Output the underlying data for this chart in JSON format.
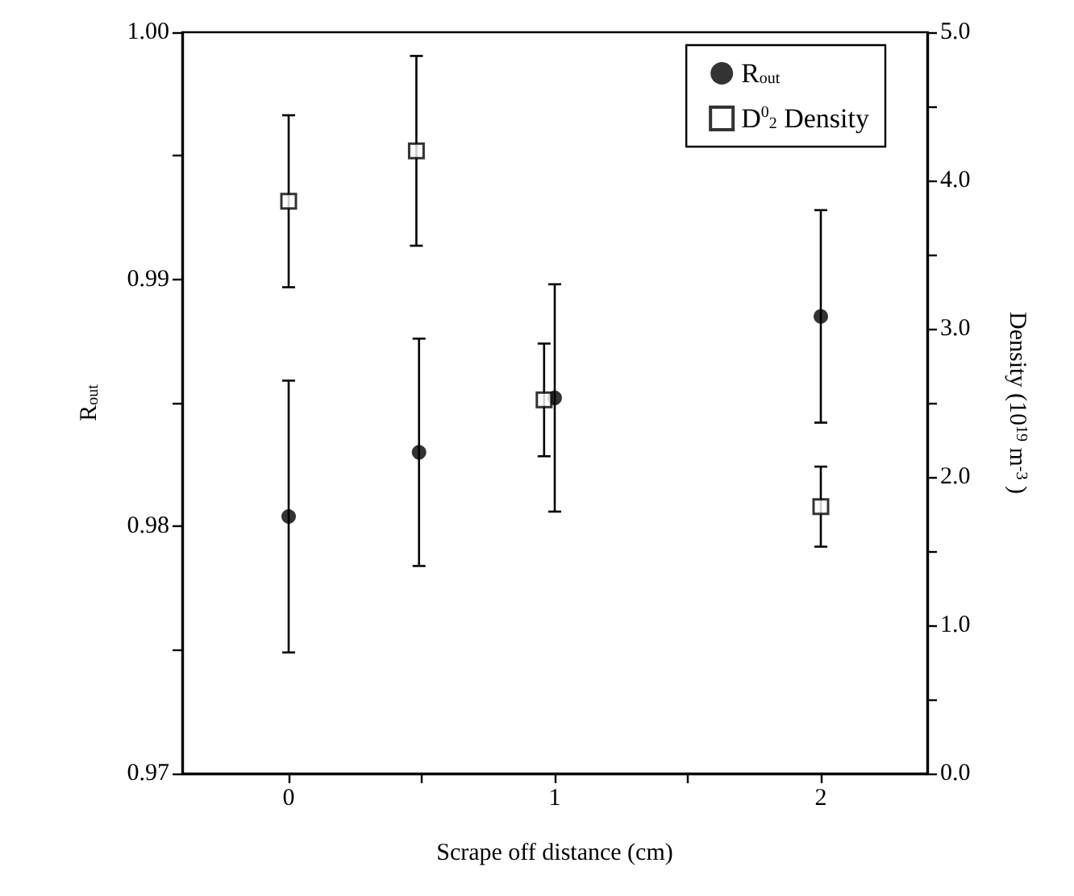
{
  "chart_data": {
    "type": "scatter",
    "xlabel": "Scrape off distance (cm)",
    "ylabel": "R$_{out}$",
    "y2label": "Density (10$^{19}$ m$^{-3}$ )",
    "xlim": [
      -0.4,
      2.4
    ],
    "xticks": [
      0,
      {
        "value": 0.5,
        "label": null
      },
      1,
      {
        "value": 1.5,
        "label": null
      },
      2
    ],
    "ylim": [
      0.97,
      1.0
    ],
    "yticks": [
      0.97,
      {
        "value": 0.975,
        "label": null
      },
      0.98,
      {
        "value": 0.985,
        "label": null
      },
      0.99,
      {
        "value": 0.995,
        "label": null
      },
      {
        "value": 1.0,
        "label": "1.00"
      }
    ],
    "y2lim": [
      0,
      5
    ],
    "y2ticks": [
      {
        "value": 0,
        "label": "0.0"
      },
      {
        "value": 0.5,
        "label": null
      },
      {
        "value": 1,
        "label": "1.0"
      },
      {
        "value": 1.5,
        "label": null
      },
      {
        "value": 2,
        "label": "2.0"
      },
      {
        "value": 2.5,
        "label": null
      },
      {
        "value": 3,
        "label": "3.0"
      },
      {
        "value": 3.5,
        "label": null
      },
      {
        "value": 4,
        "label": "4.0"
      },
      {
        "value": 4.5,
        "label": null
      },
      {
        "value": 5,
        "label": "5.0"
      }
    ],
    "legend": "top right",
    "series": [
      {
        "name": "R$_{out}$",
        "color": "#000000",
        "marker": "circle",
        "x": [
          0,
          0.49,
          1.0,
          2.0
        ],
        "values": [
          0.9804,
          0.983,
          0.9852,
          0.9885
        ],
        "errors": [
          0.0055,
          0.0046,
          0.0046,
          0.0043
        ]
      },
      {
        "name": "D$^{0}$$_{2}$ Density",
        "color": "#000000",
        "marker": "square",
        "axis": "y2",
        "x": [
          0,
          0.48,
          0.96,
          2.0
        ],
        "values": [
          3.86,
          4.2,
          2.52,
          1.8
        ],
        "errors": [
          0.58,
          0.64,
          0.38,
          0.27
        ]
      }
    ]
  }
}
